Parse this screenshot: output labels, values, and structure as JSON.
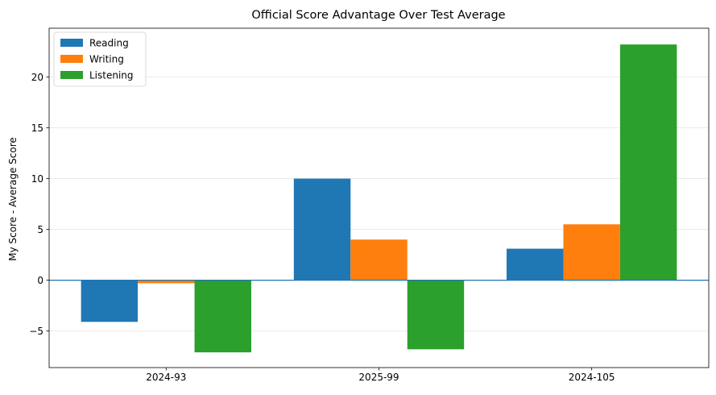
{
  "chart_data": {
    "type": "bar",
    "title": "Official Score Advantage Over Test Average",
    "xlabel": "",
    "ylabel": "My Score - Average Score",
    "categories": [
      "2024-93",
      "2025-99",
      "2024-105"
    ],
    "series": [
      {
        "name": "Reading",
        "color": "#1f77b4",
        "values": [
          -4.1,
          10.0,
          3.1
        ]
      },
      {
        "name": "Writing",
        "color": "#ff7f0e",
        "values": [
          -0.3,
          4.0,
          5.5
        ]
      },
      {
        "name": "Listening",
        "color": "#2ca02c",
        "values": [
          -7.1,
          -6.8,
          23.2
        ]
      }
    ],
    "ylim": [
      -8.6,
      24.8
    ],
    "yticks": [
      -5,
      0,
      5,
      10,
      15,
      20
    ],
    "ytick_labels": [
      "−5",
      "0",
      "5",
      "10",
      "15",
      "20"
    ],
    "grid": "horizontal",
    "legend_position": "upper-left",
    "zero_line_color": "#1f77b4"
  }
}
